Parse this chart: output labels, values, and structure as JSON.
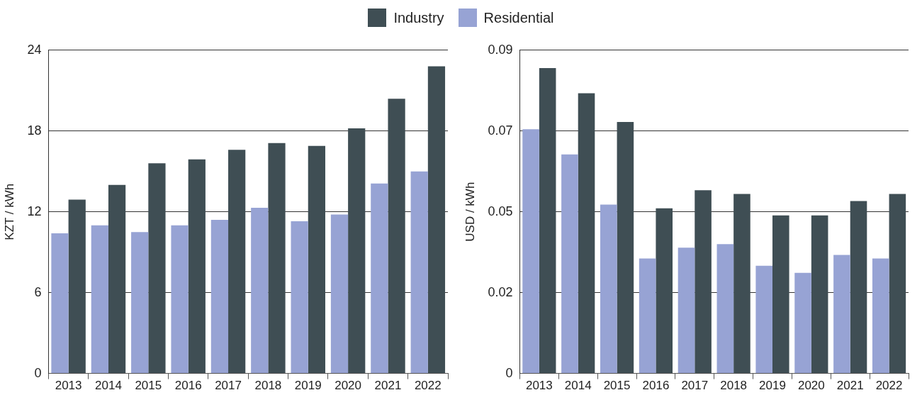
{
  "chart_data": [
    {
      "type": "bar",
      "ylabel": "KZT / kWh",
      "categories": [
        "2013",
        "2014",
        "2015",
        "2016",
        "2017",
        "2018",
        "2019",
        "2020",
        "2021",
        "2022"
      ],
      "series": [
        {
          "name": "Residential",
          "color": "#97a3d4",
          "values": [
            10.4,
            11.0,
            10.5,
            11.0,
            11.4,
            12.3,
            11.3,
            11.8,
            14.1,
            15.0
          ]
        },
        {
          "name": "Industry",
          "color": "#3f4e54",
          "values": [
            12.9,
            14.0,
            15.6,
            15.9,
            16.6,
            17.1,
            16.9,
            18.2,
            20.4,
            22.8
          ]
        }
      ],
      "ylim": [
        0,
        24
      ],
      "yticks": [
        0,
        6,
        12,
        18,
        24
      ],
      "grid": "y",
      "legend": "top"
    },
    {
      "type": "bar",
      "ylabel": "USD / kWh",
      "categories": [
        "2013",
        "2014",
        "2015",
        "2016",
        "2017",
        "2018",
        "2019",
        "2020",
        "2021",
        "2022"
      ],
      "series": [
        {
          "name": "Residential",
          "color": "#97a3d4",
          "values": [
            0.068,
            0.061,
            0.047,
            0.032,
            0.035,
            0.036,
            0.03,
            0.028,
            0.033,
            0.032
          ]
        },
        {
          "name": "Industry",
          "color": "#3f4e54",
          "values": [
            0.085,
            0.078,
            0.07,
            0.046,
            0.051,
            0.05,
            0.044,
            0.044,
            0.048,
            0.05
          ]
        }
      ],
      "ylim": [
        0,
        0.09
      ],
      "yticks": [
        0,
        {
          "value": 0.0225,
          "label": "0.02"
        },
        {
          "value": 0.045,
          "label": "0.05"
        },
        {
          "value": 0.0675,
          "label": "0.07"
        },
        0.09
      ],
      "grid": "y",
      "legend": "top"
    }
  ]
}
